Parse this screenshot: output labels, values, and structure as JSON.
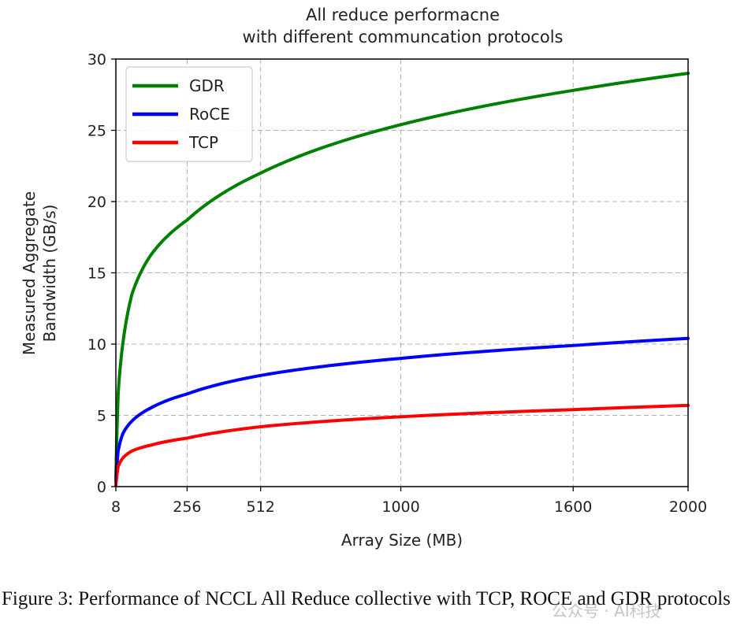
{
  "chart_data": {
    "type": "line",
    "title": [
      "All reduce performacne",
      "with different communcation protocols"
    ],
    "xlabel": "Array Size (MB)",
    "ylabel": [
      "Measured Aggregate",
      "Bandwidth (GB/s)"
    ],
    "xlim": [
      8,
      2000
    ],
    "ylim": [
      0,
      30
    ],
    "xticks": [
      8,
      256,
      512,
      1000,
      1600,
      2000
    ],
    "yticks": [
      0,
      5,
      10,
      15,
      20,
      25,
      30
    ],
    "grid": true,
    "legend_position": "top-left",
    "x": [
      8,
      16,
      32,
      64,
      128,
      256,
      512,
      1000,
      1600,
      2000
    ],
    "series": [
      {
        "name": "GDR",
        "color": "#008000",
        "values": [
          0.5,
          6.5,
          10.0,
          13.5,
          16.2,
          18.7,
          22.0,
          25.4,
          27.8,
          29.0
        ]
      },
      {
        "name": "RoCE",
        "color": "#0000ff",
        "values": [
          0.3,
          2.5,
          3.7,
          4.6,
          5.5,
          6.5,
          7.8,
          9.0,
          9.9,
          10.4
        ]
      },
      {
        "name": "TCP",
        "color": "#ff0000",
        "values": [
          0.1,
          1.4,
          2.0,
          2.5,
          2.9,
          3.4,
          4.2,
          4.9,
          5.4,
          5.7
        ]
      }
    ]
  },
  "caption": "Figure 3: Performance of NCCL All Reduce collective with TCP, ROCE and GDR protocols",
  "watermark": "公众号 · AI科技"
}
